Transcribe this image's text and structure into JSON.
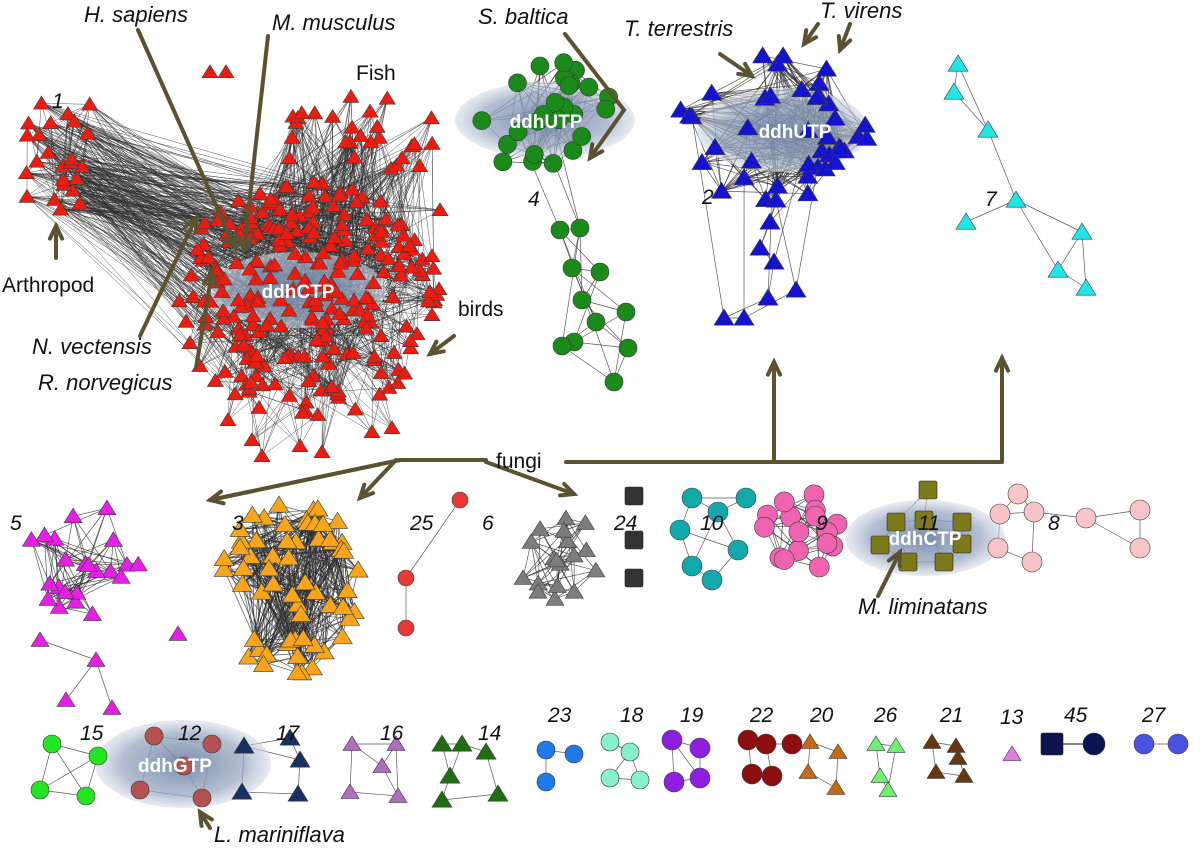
{
  "taxa": {
    "h_sapiens": "H. sapiens",
    "m_musculus": "M. musculus",
    "s_baltica": "S. baltica",
    "t_terrestris": "T. terrestris",
    "t_virens": "T. virens",
    "n_vectensis": "N. vectensis",
    "r_norvegicus": "R. norvegicus",
    "m_liminatans": "M. liminatans",
    "l_mariniflava": "L. mariniflava"
  },
  "groups": {
    "fish": "Fish",
    "arthropod": "Arthropod",
    "birds": "birds",
    "fungi": "fungi"
  },
  "pools": {
    "c1": "ddhCTP",
    "c2": "ddhUTP",
    "c4": "ddhUTP",
    "c11": "ddhCTP",
    "c12": "ddhGTP"
  },
  "cluster_numbers": [
    "1",
    "2",
    "3",
    "4",
    "5",
    "6",
    "7",
    "8",
    "9",
    "10",
    "11",
    "12",
    "13",
    "14",
    "15",
    "16",
    "17",
    "18",
    "19",
    "20",
    "21",
    "22",
    "23",
    "24",
    "25",
    "26",
    "27",
    "45"
  ],
  "colors": {
    "c1": "#ee1c10",
    "c2": "#1414d0",
    "c3": "#f7a51c",
    "c4": "#1a8a18",
    "c5": "#e61ee6",
    "c6": "#7d7d7d",
    "c7": "#22e6e6",
    "c8": "#f9c4c8",
    "c9": "#f063b0",
    "c10": "#12a8ac",
    "c11": "#7c7a1a",
    "c12": "#b45252",
    "c13": "#e47ce8",
    "c14": "#1f6e12",
    "c15": "#22e622",
    "c16": "#b06cc0",
    "c17": "#1a2f62",
    "c18": "#86f0c8",
    "c19": "#8e1ee0",
    "c20": "#c46a14",
    "c21": "#6a3610",
    "c22": "#8c0e0e",
    "c23": "#1e7ae6",
    "c24": "#333333",
    "c25": "#e83838",
    "c26": "#70f070",
    "c27": "#4a50e0",
    "c45": "#0c1450",
    "arrow": "#5b5232",
    "edge": "#2f2f2f"
  }
}
